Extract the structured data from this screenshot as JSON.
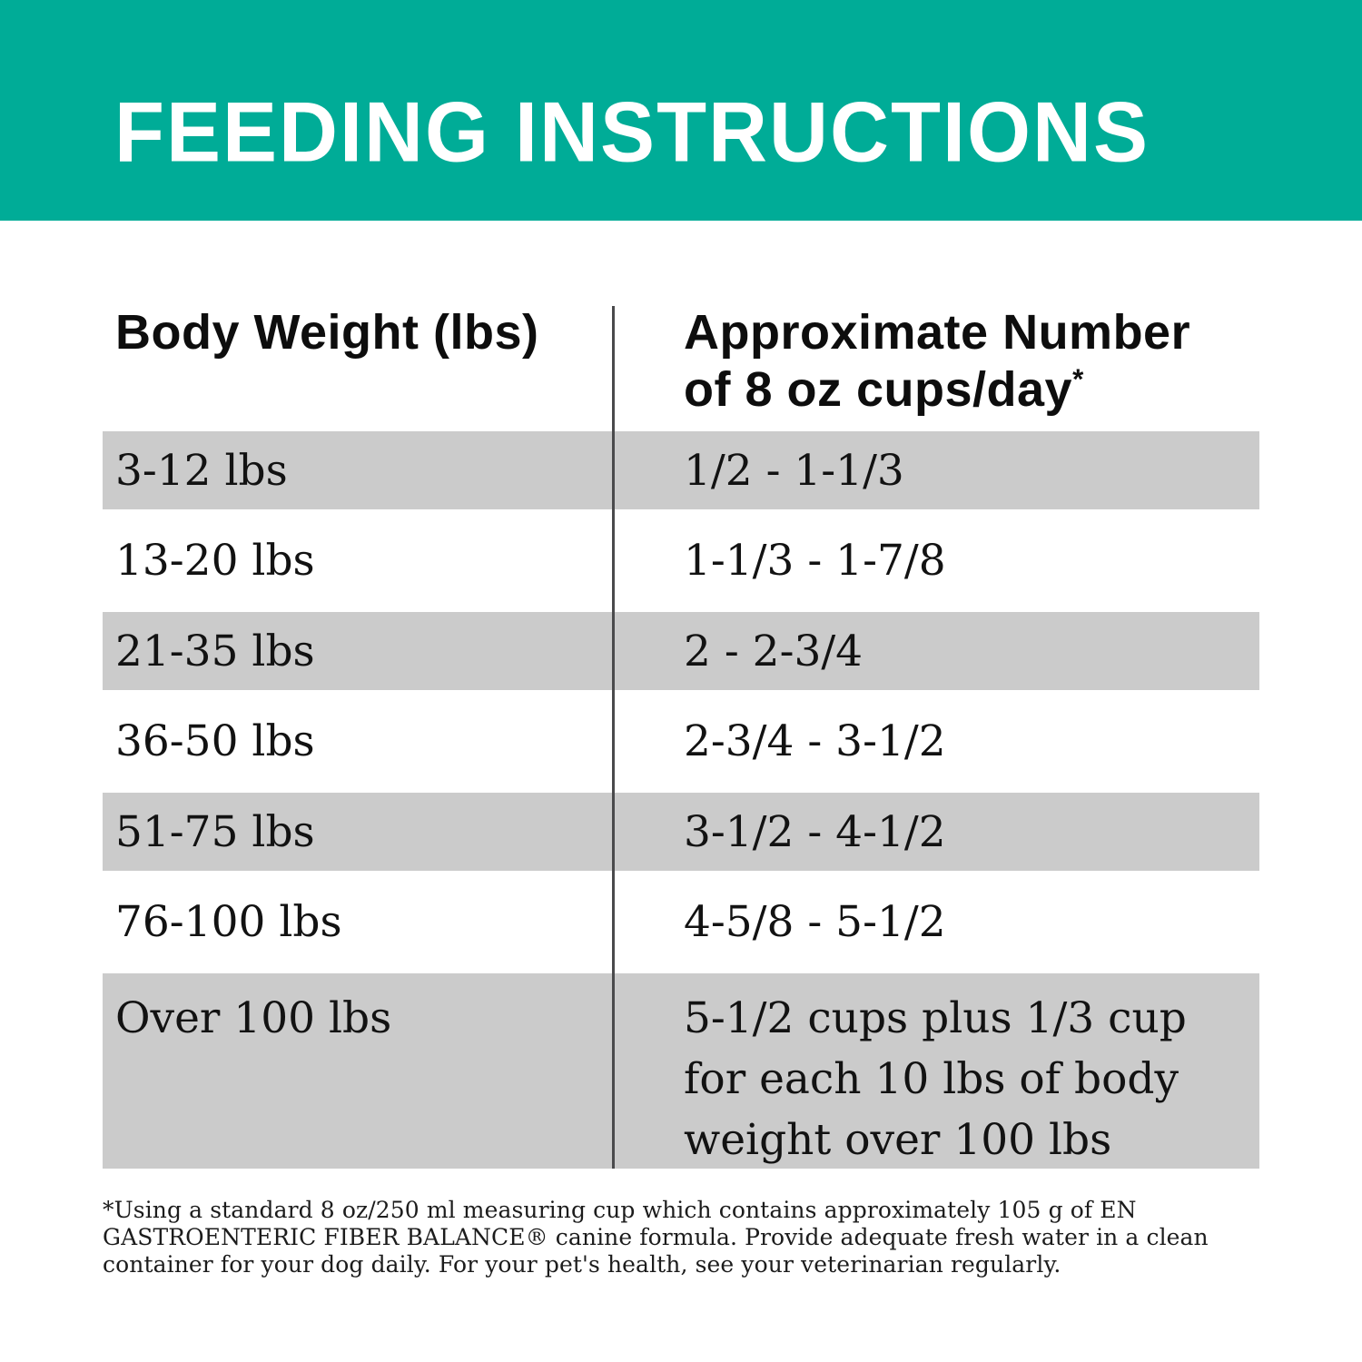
{
  "banner": {
    "title": "FEEDING INSTRUCTIONS",
    "bg_color": "#00AC97",
    "text_color": "#FFFFFF"
  },
  "table": {
    "col1_header": "Body Weight (lbs)",
    "col2_header_line1": "Approximate Number",
    "col2_header_line2": "of 8 oz cups/day",
    "col2_header_asterisk": "*",
    "shaded_row_color": "#CBCBCB",
    "divider_color": "#4A4A4C",
    "rows": [
      {
        "weight": "3-12 lbs",
        "cups": "1/2 - 1-1/3",
        "shaded": true,
        "multiline": false
      },
      {
        "weight": "13-20 lbs",
        "cups": "1-1/3 - 1-7/8",
        "shaded": false,
        "multiline": false
      },
      {
        "weight": "21-35 lbs",
        "cups": "2 - 2-3/4",
        "shaded": true,
        "multiline": false
      },
      {
        "weight": "36-50 lbs",
        "cups": "2-3/4 - 3-1/2",
        "shaded": false,
        "multiline": false
      },
      {
        "weight": "51-75 lbs",
        "cups": "3-1/2 - 4-1/2",
        "shaded": true,
        "multiline": false
      },
      {
        "weight": "76-100 lbs",
        "cups": "4-5/8 - 5-1/2",
        "shaded": false,
        "multiline": false
      },
      {
        "weight": "Over 100 lbs",
        "cups": "5-1/2 cups plus 1/3 cup for each 10 lbs of body weight over 100 lbs",
        "shaded": true,
        "multiline": true
      }
    ]
  },
  "footnote": {
    "text": "*Using a standard 8 oz/250 ml measuring cup which contains approximately 105 g of EN GASTROENTERIC FIBER BALANCE® canine formula. Provide adequate fresh water in a clean container for your dog daily. For your pet's health, see your veterinarian regularly."
  }
}
